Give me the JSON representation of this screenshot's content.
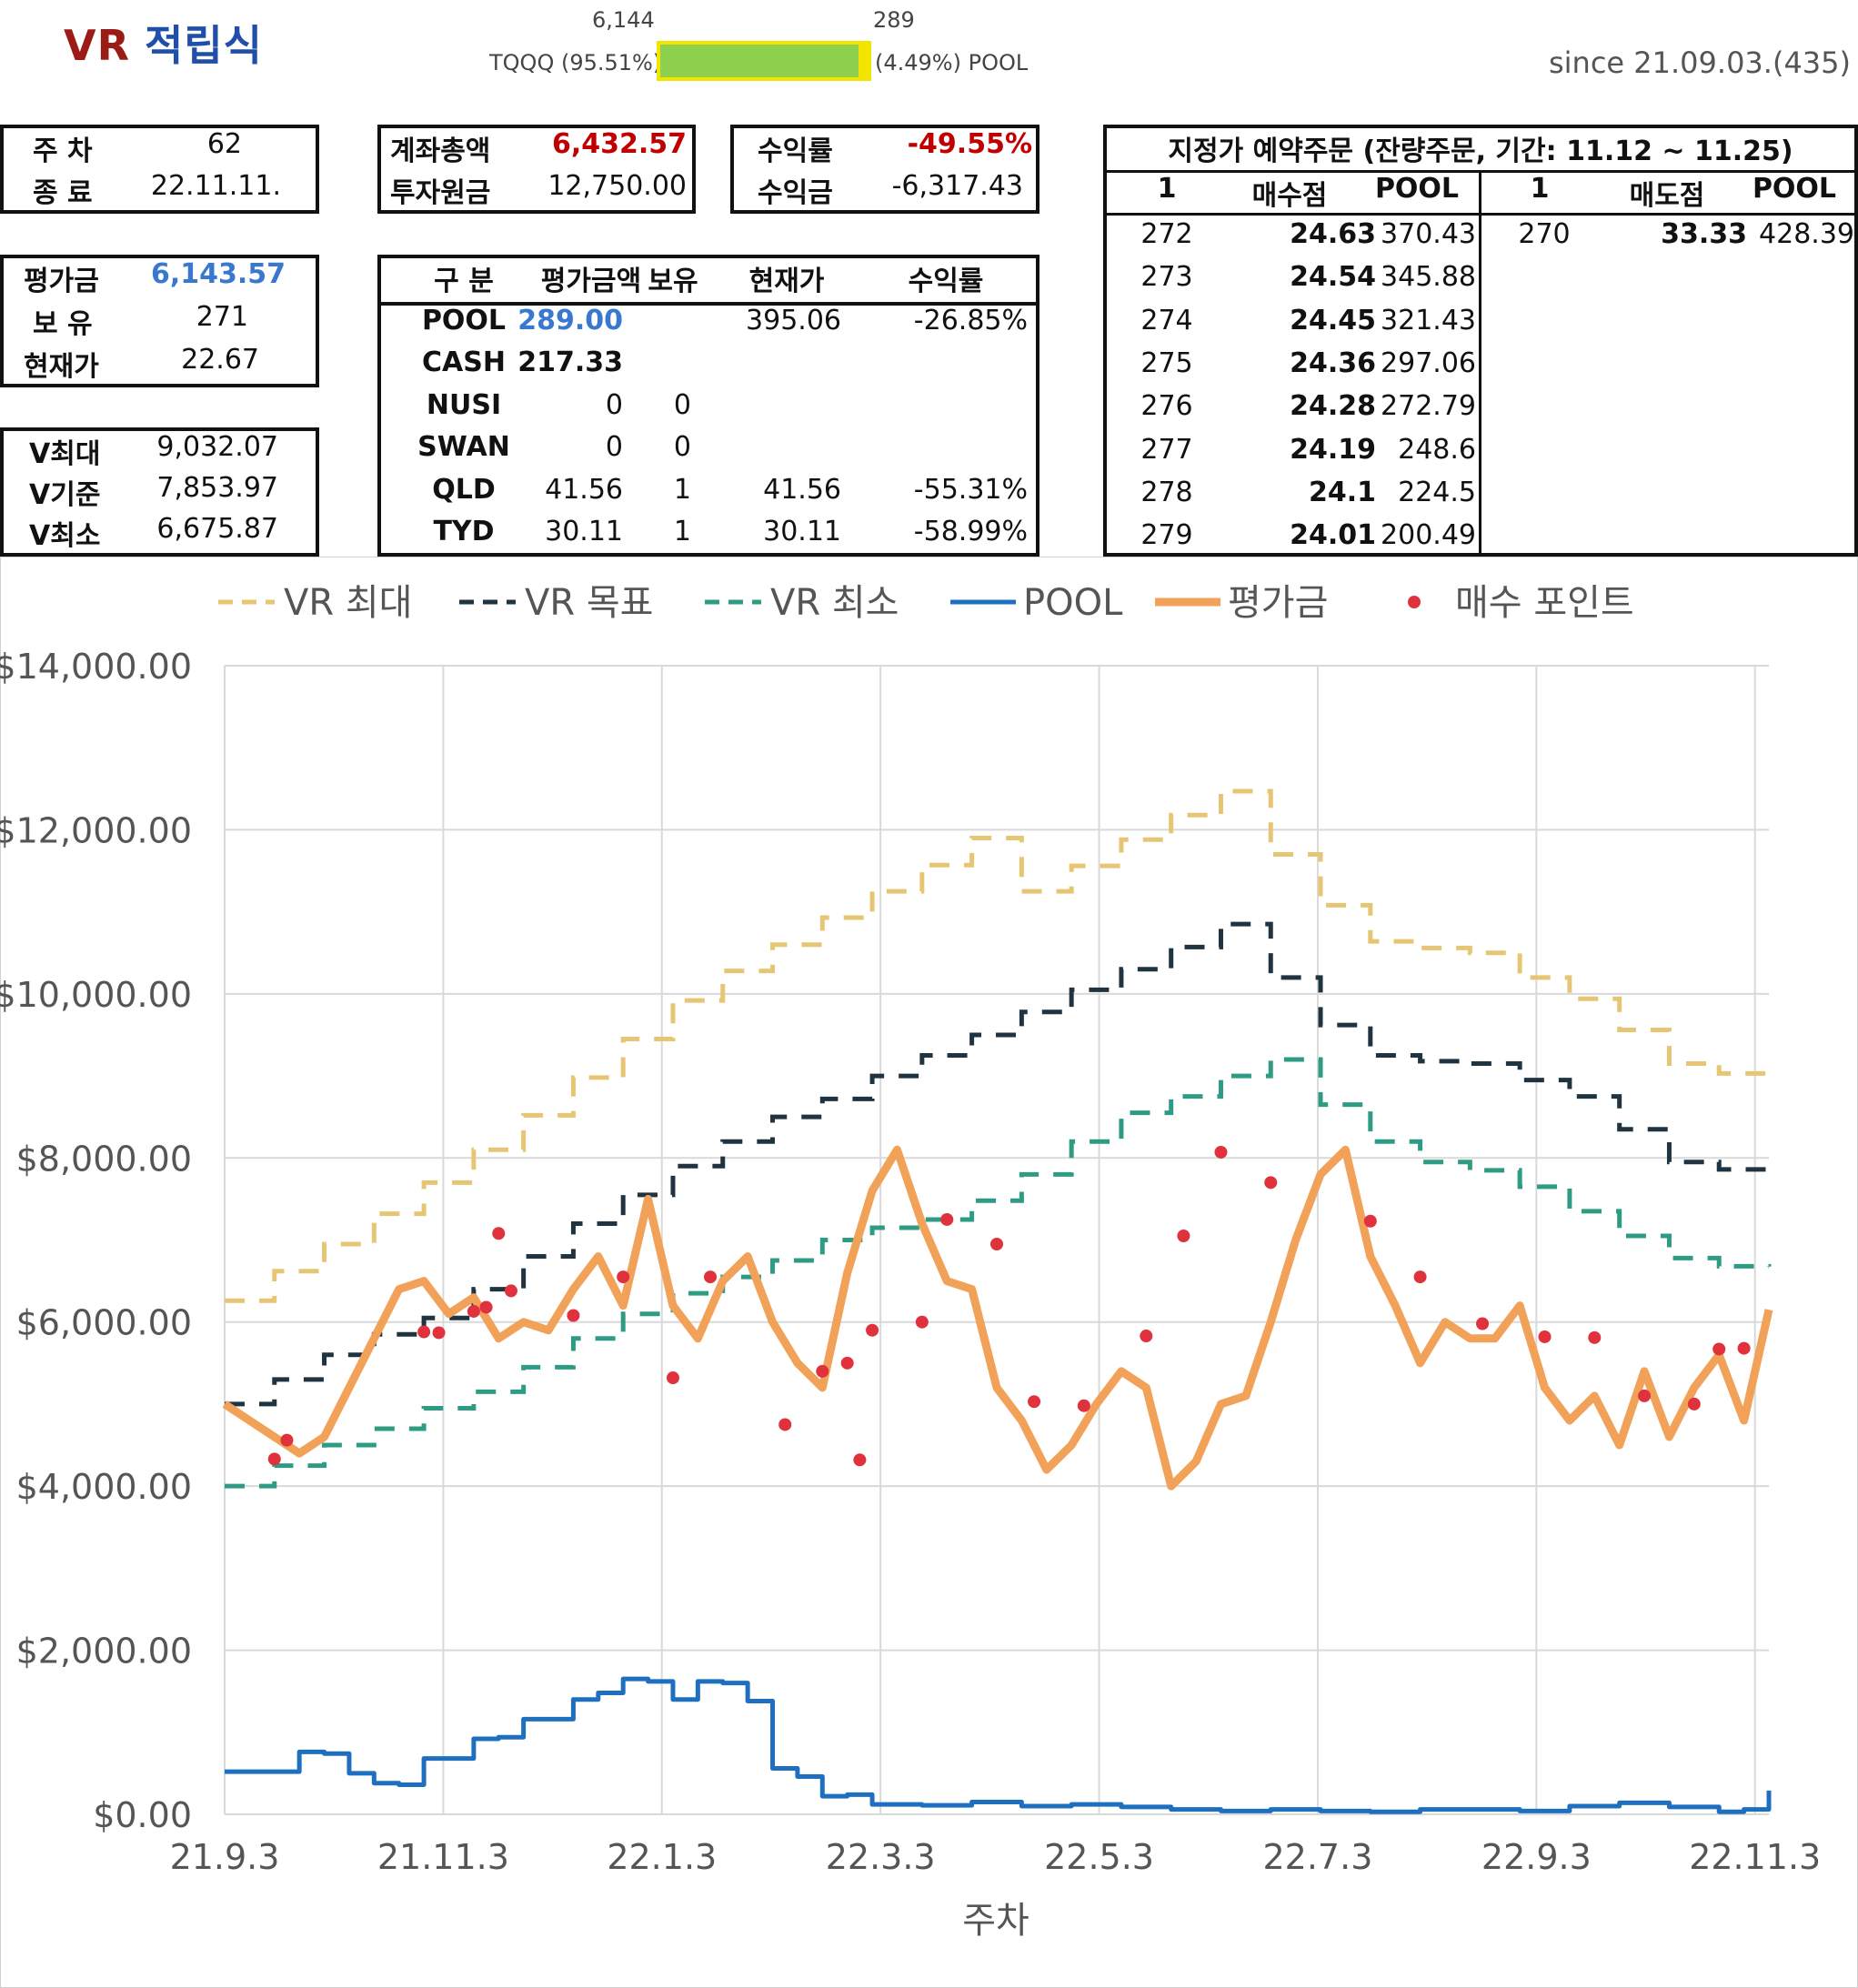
{
  "header": {
    "title_vr": "VR",
    "title_kr": "적립식",
    "ratio": {
      "left_value": "6,144",
      "right_value": "289",
      "left_label": "TQQQ (95.51%)",
      "right_label": "(4.49%) POOL",
      "left_pct": 95.51
    },
    "since": "since 21.09.03.(435)"
  },
  "week_box": {
    "week_label": "주 차",
    "week_value": "62",
    "end_label": "종 료",
    "end_value": "22.11.11."
  },
  "eval_box": {
    "eval_label": "평가금",
    "eval_value": "6,143.57",
    "hold_label": "보 유",
    "hold_value": "271",
    "price_label": "현재가",
    "price_value": "22.67"
  },
  "v_box": {
    "vmax_label": "V최대",
    "vmax_value": "9,032.07",
    "vbase_label": "V기준",
    "vbase_value": "7,853.97",
    "vmin_label": "V최소",
    "vmin_value": "6,675.87"
  },
  "account_box": {
    "total_label": "계좌총액",
    "total_value": "6,432.57",
    "principal_label": "투자원금",
    "principal_value": "12,750.00"
  },
  "return_box": {
    "rate_label": "수익률",
    "rate_value": "-49.55%",
    "profit_label": "수익금",
    "profit_value": "-6,317.43"
  },
  "holdings": {
    "headers": [
      "구 분",
      "평가금액",
      "보유",
      "현재가",
      "수익률"
    ],
    "rows": [
      [
        "POOL",
        "289.00",
        "",
        "395.06",
        "-26.85%"
      ],
      [
        "CASH",
        "217.33",
        "",
        "",
        ""
      ],
      [
        "NUSI",
        "0",
        "0",
        "",
        ""
      ],
      [
        "SWAN",
        "0",
        "0",
        "",
        ""
      ],
      [
        "QLD",
        "41.56",
        "1",
        "41.56",
        "-55.31%"
      ],
      [
        "TYD",
        "30.11",
        "1",
        "30.11",
        "-58.99%"
      ]
    ]
  },
  "orders": {
    "title": "지정가 예약주문 (잔량주문, 기간: 11.12 ~ 11.25)",
    "buy_headers": [
      "1",
      "매수점",
      "POOL"
    ],
    "sell_headers": [
      "1",
      "매도점",
      "POOL"
    ],
    "buy_rows": [
      [
        "272",
        "24.63",
        "370.43"
      ],
      [
        "273",
        "24.54",
        "345.88"
      ],
      [
        "274",
        "24.45",
        "321.43"
      ],
      [
        "275",
        "24.36",
        "297.06"
      ],
      [
        "276",
        "24.28",
        "272.79"
      ],
      [
        "277",
        "24.19",
        "248.6"
      ],
      [
        "278",
        "24.1",
        "224.5"
      ],
      [
        "279",
        "24.01",
        "200.49"
      ]
    ],
    "sell_rows": [
      [
        "270",
        "33.33",
        "428.39"
      ]
    ]
  },
  "chart_data": {
    "type": "line",
    "xlabel": "주차",
    "ylabel": "",
    "ylim": [
      0,
      14000
    ],
    "yticks": [
      "$0.00",
      "$2,000.00",
      "$4,000.00",
      "$6,000.00",
      "$8,000.00",
      "$10,000.00",
      "$12,000.00",
      "$14,000.00"
    ],
    "xticks": [
      "21.9.3",
      "21.11.3",
      "22.1.3",
      "22.3.3",
      "22.5.3",
      "22.7.3",
      "22.9.3",
      "22.11.3"
    ],
    "grid": true,
    "legend_position": "top",
    "x_range_weeks": [
      0,
      62
    ],
    "series": [
      {
        "name": "VR 최대",
        "color": "#e6c674",
        "style": "dashed",
        "x": [
          0,
          2,
          4,
          6,
          8,
          10,
          12,
          14,
          16,
          18,
          20,
          22,
          24,
          26,
          28,
          30,
          32,
          34,
          36,
          38,
          40,
          42,
          44,
          46,
          48,
          50,
          52,
          54,
          56,
          58,
          60,
          62
        ],
        "values": [
          6260,
          6620,
          6950,
          7320,
          7700,
          8100,
          8520,
          8980,
          9450,
          9920,
          10280,
          10600,
          10930,
          11250,
          11570,
          11900,
          11250,
          11560,
          11880,
          12180,
          12470,
          11700,
          11080,
          10640,
          10560,
          10500,
          10200,
          9940,
          9560,
          9150,
          9030,
          9032
        ]
      },
      {
        "name": "VR 목표",
        "color": "#1f3340",
        "style": "dashed",
        "x": [
          0,
          2,
          4,
          6,
          8,
          10,
          12,
          14,
          16,
          18,
          20,
          22,
          24,
          26,
          28,
          30,
          32,
          34,
          36,
          38,
          40,
          42,
          44,
          46,
          48,
          50,
          52,
          54,
          56,
          58,
          60,
          62
        ],
        "values": [
          5000,
          5300,
          5600,
          5850,
          6050,
          6400,
          6800,
          7200,
          7550,
          7900,
          8200,
          8500,
          8720,
          9000,
          9250,
          9500,
          9780,
          10050,
          10300,
          10570,
          10850,
          10200,
          9620,
          9250,
          9180,
          9150,
          8950,
          8750,
          8350,
          7950,
          7860,
          7854
        ]
      },
      {
        "name": "VR 최소",
        "color": "#2e9c85",
        "style": "dashed",
        "x": [
          0,
          2,
          4,
          6,
          8,
          10,
          12,
          14,
          16,
          18,
          20,
          22,
          24,
          26,
          28,
          30,
          32,
          34,
          36,
          38,
          40,
          42,
          44,
          46,
          48,
          50,
          52,
          54,
          56,
          58,
          60,
          62
        ],
        "values": [
          4000,
          4250,
          4500,
          4700,
          4950,
          5150,
          5450,
          5800,
          6100,
          6350,
          6550,
          6750,
          7000,
          7150,
          7250,
          7480,
          7800,
          8200,
          8550,
          8750,
          9000,
          9200,
          8650,
          8200,
          7950,
          7850,
          7650,
          7350,
          7050,
          6780,
          6680,
          6676
        ]
      },
      {
        "name": "POOL",
        "color": "#1f6fc0",
        "style": "solid",
        "x": [
          0,
          2,
          3,
          4,
          5,
          6,
          7,
          8,
          10,
          11,
          12,
          14,
          15,
          16,
          17,
          18,
          19,
          20,
          21,
          22,
          23,
          24,
          25,
          26,
          28,
          30,
          32,
          34,
          36,
          38,
          40,
          42,
          44,
          46,
          48,
          50,
          52,
          54,
          56,
          58,
          60,
          61,
          62
        ],
        "values": [
          520,
          520,
          760,
          740,
          500,
          380,
          360,
          680,
          920,
          940,
          1160,
          1400,
          1480,
          1650,
          1620,
          1400,
          1620,
          1600,
          1380,
          560,
          460,
          220,
          240,
          120,
          110,
          150,
          100,
          120,
          90,
          60,
          40,
          60,
          40,
          30,
          60,
          60,
          40,
          100,
          140,
          90,
          30,
          60,
          290
        ]
      },
      {
        "name": "평가금",
        "color": "#f2a158",
        "style": "solid",
        "x": [
          0,
          1,
          2,
          3,
          4,
          5,
          6,
          7,
          8,
          9,
          10,
          11,
          12,
          13,
          14,
          15,
          16,
          17,
          18,
          19,
          20,
          21,
          22,
          23,
          24,
          25,
          26,
          27,
          28,
          29,
          30,
          31,
          32,
          33,
          34,
          35,
          36,
          37,
          38,
          39,
          40,
          41,
          42,
          43,
          44,
          45,
          46,
          47,
          48,
          49,
          50,
          51,
          52,
          53,
          54,
          55,
          56,
          57,
          58,
          59,
          60,
          61,
          62
        ],
        "values": [
          5000,
          4800,
          4600,
          4400,
          4600,
          5200,
          5800,
          6400,
          6500,
          6100,
          6300,
          5800,
          6000,
          5900,
          6400,
          6800,
          6200,
          7500,
          6200,
          5800,
          6500,
          6800,
          6000,
          5500,
          5200,
          6600,
          7600,
          8100,
          7200,
          6500,
          6400,
          5200,
          4800,
          4200,
          4500,
          5000,
          5400,
          5200,
          4000,
          4300,
          5000,
          5100,
          6000,
          7000,
          7800,
          8100,
          6800,
          6200,
          5500,
          6000,
          5800,
          5800,
          6200,
          5200,
          4800,
          5100,
          4500,
          5400,
          4600,
          5200,
          5600,
          4800,
          6150
        ]
      },
      {
        "name": "매수 포인트",
        "color": "#e0323c",
        "style": "marker",
        "x": [
          2,
          2.5,
          8,
          8.6,
          10,
          10.5,
          11,
          11.5,
          14,
          16,
          18,
          19.5,
          22.5,
          24,
          25,
          25.5,
          26,
          28,
          29,
          31,
          32.5,
          34.5,
          37,
          38.5,
          40,
          42,
          46,
          48,
          50.5,
          53,
          55,
          57,
          59,
          60,
          61
        ],
        "values": [
          4330,
          4560,
          5880,
          5870,
          6130,
          6180,
          7080,
          6380,
          6080,
          6550,
          5320,
          6550,
          4750,
          5400,
          5500,
          4320,
          5900,
          6000,
          7250,
          6950,
          5030,
          4980,
          5830,
          7050,
          8070,
          7700,
          7230,
          6550,
          5980,
          5820,
          5810,
          5100,
          5000,
          5670,
          5680
        ]
      }
    ]
  }
}
